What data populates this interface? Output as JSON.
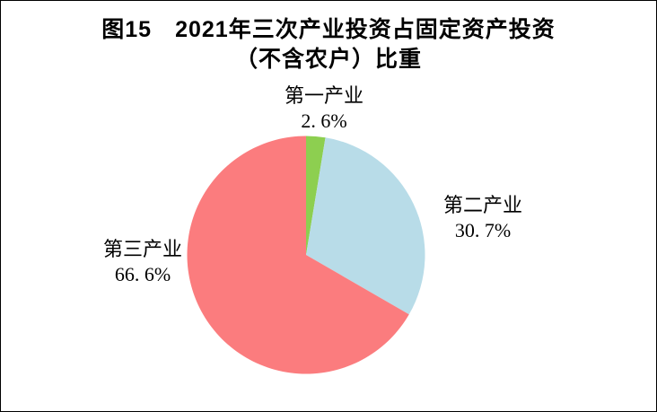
{
  "title": {
    "line1": "图15　2021年三次产业投资占固定资产投资",
    "line2": "（不含农户）比重"
  },
  "chart_data": {
    "type": "pie",
    "title": "图15 2021年三次产业投资占固定资产投资（不含农户）比重",
    "unit": "%",
    "start_angle_deg": 0,
    "direction": "clockwise",
    "labels_position": "outside",
    "legend": "none",
    "background_color": "#FFFFFF",
    "border_color": "#000000",
    "text_color": "#000000",
    "slices": [
      {
        "id": "primary-industry",
        "name": "第一产业",
        "value": 2.6,
        "value_label": "2. 6%",
        "color": "#8DCF50"
      },
      {
        "id": "secondary-industry",
        "name": "第二产业",
        "value": 30.7,
        "value_label": "30. 7%",
        "color": "#B8DCE8"
      },
      {
        "id": "tertiary-industry",
        "name": "第三产业",
        "value": 66.6,
        "value_label": "66. 6%",
        "color": "#FB7C7E"
      }
    ]
  }
}
